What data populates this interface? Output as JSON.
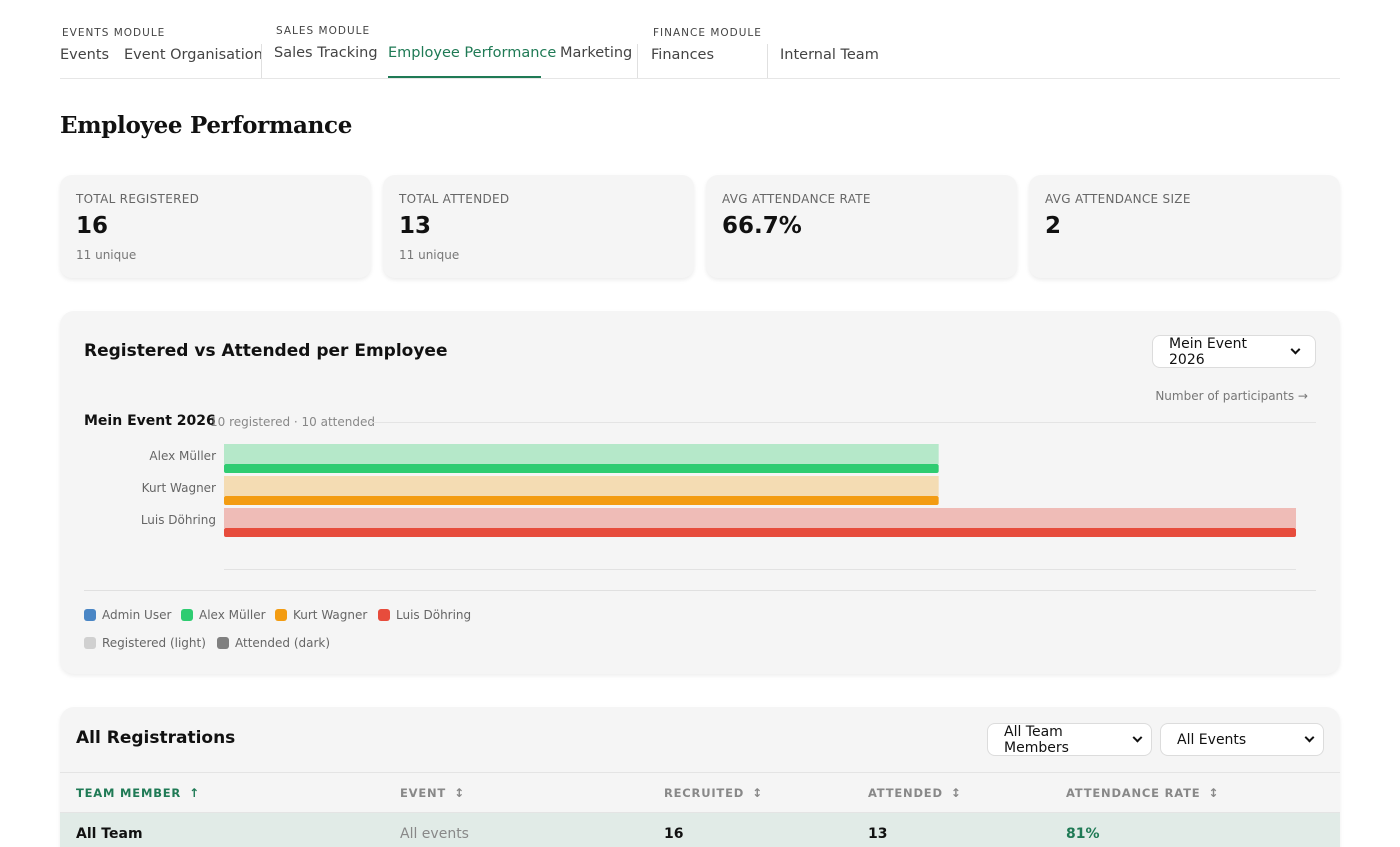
{
  "nav": {
    "modules": {
      "events": "EVENTS MODULE",
      "sales": "SALES MODULE",
      "finance": "FINANCE MODULE"
    },
    "items": [
      "Events",
      "Event Organisation",
      "Sales Tracking",
      "Employee Performance",
      "Marketing",
      "Finances",
      "Internal Team"
    ],
    "active": "Employee Performance"
  },
  "page_title": "Employee Performance",
  "stats": [
    {
      "label": "TOTAL REGISTERED",
      "value": "16",
      "sub": "11 unique"
    },
    {
      "label": "TOTAL ATTENDED",
      "value": "13",
      "sub": "11 unique"
    },
    {
      "label": "AVG ATTENDANCE RATE",
      "value": "66.7%",
      "sub": ""
    },
    {
      "label": "AVG ATTENDANCE SIZE",
      "value": "2",
      "sub": ""
    }
  ],
  "chart_section": {
    "title": "Registered vs Attended per Employee",
    "event_select": "Mein Event 2026",
    "axis_hint": "Number of participants →",
    "event_name": "Mein Event 2026",
    "event_meta": "10 registered · 10 attended",
    "legend": [
      {
        "label": "Admin User",
        "color": "#4a86c5"
      },
      {
        "label": "Alex Müller",
        "color": "#2ecc71"
      },
      {
        "label": "Kurt Wagner",
        "color": "#f39c12"
      },
      {
        "label": "Luis Döhring",
        "color": "#e74c3c"
      }
    ],
    "legend_shades": [
      {
        "label": "Registered (light)",
        "color": "#d0d0d0"
      },
      {
        "label": "Attended (dark)",
        "color": "#808080"
      }
    ]
  },
  "chart_data": {
    "type": "bar",
    "orientation": "horizontal",
    "categories": [
      "Alex Müller",
      "Kurt Wagner",
      "Luis Döhring"
    ],
    "series": [
      {
        "name": "Registered (light)",
        "values": [
          2,
          2,
          3
        ]
      },
      {
        "name": "Attended (dark)",
        "values": [
          2,
          2,
          3
        ]
      }
    ],
    "colors": {
      "Alex Müller": {
        "light": "#b5e8c9",
        "dark": "#2ecc71"
      },
      "Kurt Wagner": {
        "light": "#f4dcb3",
        "dark": "#f39c12"
      },
      "Luis Döhring": {
        "light": "#efbcb7",
        "dark": "#e74c3c"
      }
    },
    "xlim": [
      0,
      3
    ],
    "grid": false,
    "legend": "bottom-left"
  },
  "table": {
    "title": "All Registrations",
    "filter_members": "All Team Members",
    "filter_events": "All Events",
    "columns": [
      "TEAM MEMBER",
      "EVENT",
      "RECRUITED",
      "ATTENDED",
      "ATTENDANCE RATE"
    ],
    "sorted_glyph": "↑",
    "unsorted_glyph": "↕",
    "rows": [
      {
        "member": "All Team",
        "event": "All events",
        "recruited": "16",
        "attended": "13",
        "rate": "81%"
      }
    ],
    "colors": {
      "accent": "#1f7a55"
    }
  }
}
